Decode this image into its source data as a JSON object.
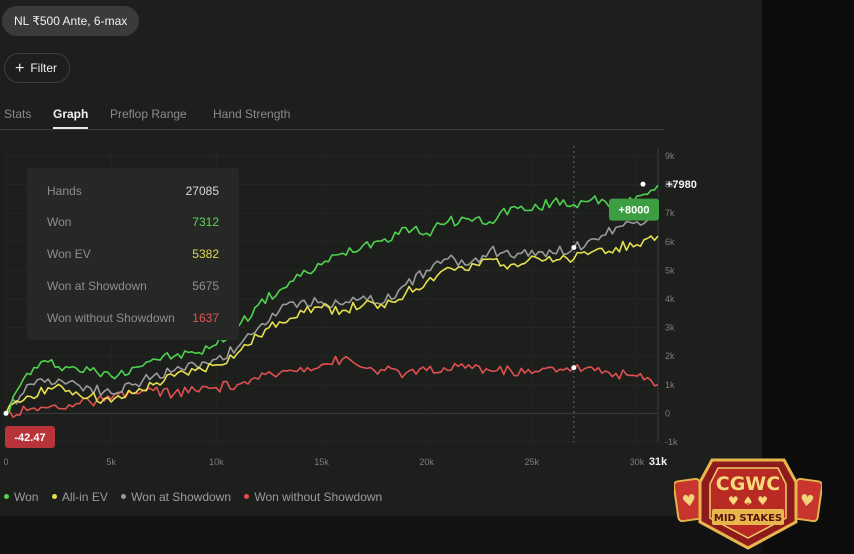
{
  "game_chip": "NL ₹500 Ante, 6-max",
  "filter": {
    "label": "Filter",
    "icon": "plus-icon"
  },
  "tabs": [
    {
      "label": "Stats",
      "active": false
    },
    {
      "label": "Graph",
      "active": true
    },
    {
      "label": "Preflop Range",
      "active": false
    },
    {
      "label": "Hand Strength",
      "active": false
    }
  ],
  "stats": [
    {
      "label": "Hands",
      "value": "27085",
      "color": "#d8d8d8"
    },
    {
      "label": "Won",
      "value": "7312",
      "color": "#5fd35f"
    },
    {
      "label": "Won EV",
      "value": "5382",
      "color": "#e0d95a"
    },
    {
      "label": "Won at Showdown",
      "value": "5675",
      "color": "#8e8e8e"
    },
    {
      "label": "Won without Showdown",
      "value": "1637",
      "color": "#e05555"
    }
  ],
  "legend": [
    {
      "label": "Won",
      "color": "#4fd24f"
    },
    {
      "label": "All-in EV",
      "color": "#e6e04f"
    },
    {
      "label": "Won at Showdown",
      "color": "#9a9a9a"
    },
    {
      "label": "Won without Showdown",
      "color": "#e05050"
    }
  ],
  "annotations": {
    "final_won": "+7980",
    "highlight": "+8000",
    "start_value": "-42.47"
  },
  "chart_data": {
    "type": "line",
    "x_ticks": [
      "0",
      "5k",
      "10k",
      "15k",
      "20k",
      "25k",
      "30k",
      "31k"
    ],
    "y_ticks": [
      "9k",
      "8k",
      "7k",
      "6k",
      "5k",
      "4k",
      "3k",
      "2k",
      "1k",
      "0",
      "-1k"
    ],
    "x_range": [
      0,
      31000
    ],
    "y_range": [
      -1000,
      9000
    ],
    "cursor_x": 27000,
    "x": [
      0,
      1000,
      2000,
      3000,
      4000,
      5000,
      6000,
      7000,
      8000,
      9000,
      10000,
      11000,
      12000,
      13000,
      14000,
      15000,
      16000,
      17000,
      18000,
      19000,
      20000,
      21000,
      22000,
      23000,
      24000,
      25000,
      26000,
      27000,
      28000,
      29000,
      30000,
      31000
    ],
    "series": [
      {
        "name": "Won",
        "color": "#4fd24f",
        "values": [
          0,
          1400,
          1800,
          1600,
          1500,
          1300,
          1600,
          1900,
          2000,
          2100,
          2400,
          3000,
          3800,
          4300,
          4800,
          5200,
          5600,
          5900,
          6100,
          6500,
          6300,
          6700,
          6800,
          6700,
          7200,
          7100,
          7400,
          7300,
          7600,
          7000,
          7600,
          7980
        ]
      },
      {
        "name": "All-in EV",
        "color": "#e6e04f",
        "values": [
          0,
          600,
          900,
          800,
          600,
          400,
          700,
          1000,
          1300,
          1500,
          1700,
          2100,
          2700,
          3200,
          3600,
          3700,
          3600,
          3800,
          3700,
          4200,
          4600,
          5100,
          5000,
          5400,
          5200,
          5500,
          5300,
          5400,
          5700,
          5800,
          5900,
          6200
        ]
      },
      {
        "name": "Won at Showdown",
        "color": "#9a9a9a",
        "values": [
          0,
          1000,
          1200,
          1100,
          900,
          700,
          1000,
          1300,
          1500,
          1700,
          1900,
          2300,
          3000,
          3600,
          3900,
          3900,
          3800,
          4100,
          3900,
          4500,
          5000,
          5400,
          5200,
          5700,
          5500,
          5700,
          5600,
          5800,
          6100,
          6500,
          6700,
          7000
        ]
      },
      {
        "name": "Won without Showdown",
        "color": "#e05050",
        "values": [
          0,
          100,
          200,
          300,
          400,
          500,
          700,
          800,
          700,
          800,
          900,
          1000,
          1200,
          1400,
          1600,
          1700,
          1900,
          1600,
          1500,
          1400,
          1500,
          1500,
          1700,
          1500,
          1500,
          1400,
          1600,
          1600,
          1500,
          1400,
          1300,
          1000
        ]
      }
    ]
  }
}
